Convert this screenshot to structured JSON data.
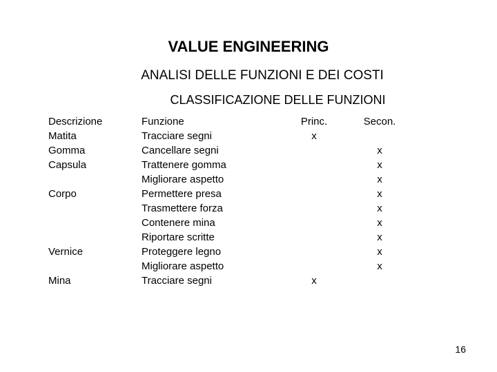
{
  "title": "VALUE ENGINEERING",
  "subtitle": "ANALISI DELLE FUNZIONI E DEI COSTI",
  "section_title": "CLASSIFICAZIONE DELLE FUNZIONI",
  "headers": {
    "descrizione": "Descrizione",
    "funzione": "Funzione",
    "princ": "Princ.",
    "secon": "Secon."
  },
  "desc_col": {
    "r0": "Descrizione",
    "r1": "Matita",
    "r2": "Gomma",
    "r3": "Capsula",
    "r4": "",
    "r5": "Corpo",
    "r6": "",
    "r7": "",
    "r8": "",
    "r9": "Vernice",
    "r10": "",
    "r11": "Mina"
  },
  "func_col": {
    "r0": "Funzione",
    "r1": "Tracciare segni",
    "r2": "Cancellare segni",
    "r3": "Trattenere gomma",
    "r4": "Migliorare aspetto",
    "r5": "Permettere presa",
    "r6": "Trasmettere forza",
    "r7": "Contenere mina",
    "r8": "Riportare scritte",
    "r9": "Proteggere legno",
    "r10": "Migliorare aspetto",
    "r11": "Tracciare segni"
  },
  "princ_col": {
    "r0": "Princ.",
    "r1": "x",
    "r2": "",
    "r3": "",
    "r4": "",
    "r5": "",
    "r6": "",
    "r7": "",
    "r8": "",
    "r9": "",
    "r10": "",
    "r11": "x"
  },
  "secon_col": {
    "r0": "Secon.",
    "r1": "",
    "r2": "x",
    "r3": "x",
    "r4": "x",
    "r5": "x",
    "r6": "x",
    "r7": "x",
    "r8": "x",
    "r9": "x",
    "r10": "x",
    "r11": ""
  },
  "page_number": "16"
}
